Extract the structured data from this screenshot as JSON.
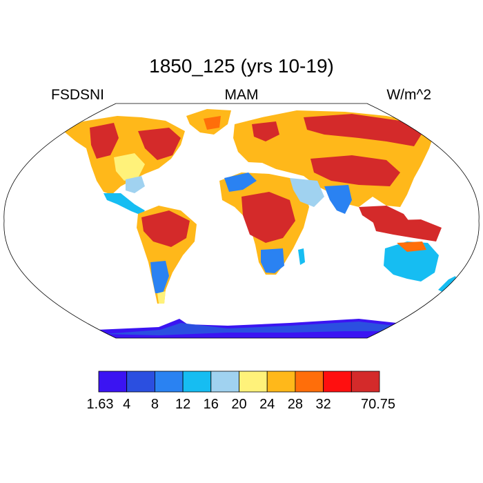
{
  "title": "1850_125 (yrs 10-19)",
  "left_label": "FSDSNI",
  "center_label": "MAM",
  "right_label": "W/m^2",
  "colorbar": {
    "colors": [
      "#3b14f2",
      "#2b4fe0",
      "#2a82f2",
      "#16bdf2",
      "#a0d2f0",
      "#fff27a",
      "#ffb81a",
      "#ff6e0a",
      "#ff0f0f",
      "#d42a2a"
    ],
    "labels": [
      "1.63",
      "4",
      "8",
      "12",
      "16",
      "20",
      "24",
      "28",
      "32",
      "70.75"
    ]
  },
  "map_legend_colors": {
    "ocean": "#ffffff",
    "coast": "#000000",
    "frame": "#000000"
  }
}
